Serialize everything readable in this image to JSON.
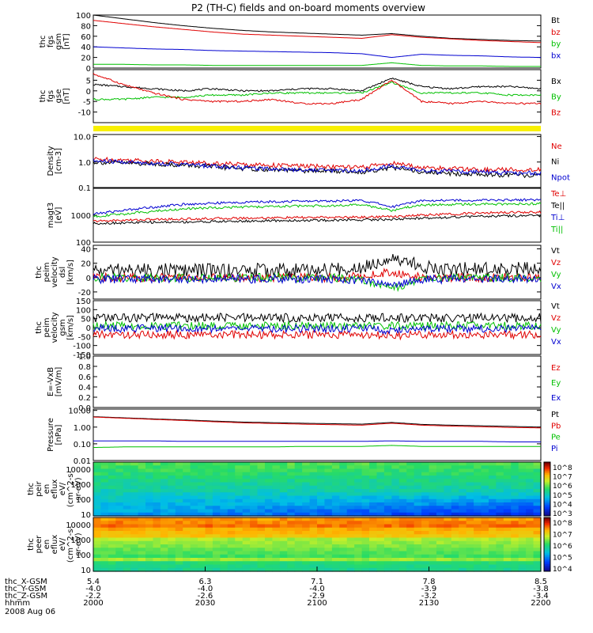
{
  "chart_data": {
    "type": "line",
    "title": "P2 (TH-C) fields and on-board moments overview",
    "panels": [
      {
        "id": "fgs",
        "ylabel": [
          "thc",
          "fgs",
          "gsm",
          "[nT]"
        ],
        "yscale": "linear",
        "ylim": [
          0,
          100
        ],
        "yticks": [
          "100",
          "80",
          "60",
          "40",
          "20",
          "0"
        ],
        "legend": [
          {
            "name": "Bt",
            "color": "#000000"
          },
          {
            "name": "bz",
            "color": "#e00000"
          },
          {
            "name": "by",
            "color": "#00c000"
          },
          {
            "name": "bx",
            "color": "#0000d0"
          }
        ],
        "series": [
          {
            "name": "Bt",
            "values": [
              100,
              93,
              86,
              80,
              75,
              71,
              68,
              66,
              64,
              62,
              65,
              60,
              56,
              54,
              52,
              51
            ]
          },
          {
            "name": "bz",
            "values": [
              90,
              84,
              78,
              73,
              68,
              64,
              62,
              60,
              58,
              56,
              63,
              58,
              55,
              52,
              50,
              48
            ]
          },
          {
            "name": "by",
            "values": [
              7,
              7,
              6,
              6,
              5,
              5,
              5,
              5,
              5,
              5,
              10,
              5,
              4,
              4,
              3,
              3
            ]
          },
          {
            "name": "bx",
            "values": [
              40,
              38,
              36,
              35,
              33,
              32,
              31,
              30,
              29,
              27,
              20,
              26,
              24,
              23,
              21,
              20
            ]
          }
        ]
      },
      {
        "id": "fgs-dsl",
        "ylabel": [
          "thc",
          "fgs",
          "gse",
          "[nT]"
        ],
        "yscale": "linear",
        "ylim": [
          -15,
          10
        ],
        "yticks": [
          "5",
          "0",
          "-5",
          "-10"
        ],
        "legend": [
          {
            "name": "Bx",
            "color": "#000000"
          },
          {
            "name": "By",
            "color": "#00c000"
          },
          {
            "name": "Bz",
            "color": "#e00000"
          }
        ],
        "series": [
          {
            "name": "Bx",
            "values": [
              3,
              2,
              1,
              0,
              1,
              0,
              0,
              1,
              1,
              0,
              6,
              2,
              1,
              2,
              2,
              1
            ]
          },
          {
            "name": "By",
            "values": [
              -4,
              -4,
              -3,
              -3,
              -2,
              -2,
              -1,
              -1,
              -1,
              -1,
              4,
              -1,
              -1,
              -1,
              -2,
              -2
            ]
          },
          {
            "name": "Bz",
            "values": [
              8,
              3,
              -1,
              -4,
              -5,
              -5,
              -4,
              -6,
              -6,
              -4,
              5,
              -5,
              -6,
              -5,
              -6,
              -6
            ]
          }
        ]
      },
      {
        "id": "density",
        "ylabel": [
          "Density",
          "[cm-3]"
        ],
        "yscale": "log",
        "ylim": [
          0.1,
          12
        ],
        "yticks": [
          "10.0",
          "1.0",
          "0.1"
        ],
        "legend": [
          {
            "name": "Ne",
            "color": "#e00000"
          },
          {
            "name": "Ni",
            "color": "#000000"
          },
          {
            "name": "Npot",
            "color": "#0000d0"
          }
        ],
        "series": [
          {
            "name": "Ne",
            "values": [
              1.3,
              1.2,
              1.1,
              1.0,
              0.9,
              0.8,
              0.75,
              0.7,
              0.65,
              0.6,
              0.9,
              0.6,
              0.55,
              0.5,
              0.5,
              0.5
            ]
          },
          {
            "name": "Ni",
            "values": [
              1.0,
              0.9,
              0.85,
              0.75,
              0.65,
              0.55,
              0.5,
              0.45,
              0.45,
              0.4,
              0.6,
              0.4,
              0.35,
              0.33,
              0.3,
              0.3
            ]
          },
          {
            "name": "Npot",
            "values": [
              1.1,
              1.0,
              0.9,
              0.8,
              0.7,
              0.6,
              0.55,
              0.5,
              0.48,
              0.45,
              0.7,
              0.45,
              0.42,
              0.4,
              0.38,
              0.36
            ]
          }
        ]
      },
      {
        "id": "temperature",
        "ylabel": [
          "magt3",
          "[eV]"
        ],
        "yscale": "log",
        "ylim": [
          100,
          10000
        ],
        "yticks": [
          "1000",
          "100"
        ],
        "legend": [
          {
            "name": "Te⊥",
            "color": "#e00000"
          },
          {
            "name": "Te||",
            "color": "#000000"
          },
          {
            "name": "Ti⊥",
            "color": "#0000d0"
          },
          {
            "name": "Ti||",
            "color": "#00c000"
          }
        ],
        "series": [
          {
            "name": "Te⊥",
            "values": [
              600,
              650,
              700,
              720,
              750,
              780,
              800,
              820,
              830,
              850,
              900,
              1000,
              1100,
              1200,
              1300,
              1300
            ]
          },
          {
            "name": "Te||",
            "values": [
              500,
              520,
              550,
              560,
              580,
              600,
              620,
              640,
              650,
              680,
              700,
              780,
              850,
              900,
              950,
              950
            ]
          },
          {
            "name": "Ti⊥",
            "values": [
              1100,
              1500,
              2000,
              2500,
              2800,
              3000,
              3200,
              3300,
              3400,
              3500,
              2000,
              3500,
              3600,
              3600,
              3700,
              3800
            ]
          },
          {
            "name": "Ti||",
            "values": [
              900,
              1100,
              1400,
              1700,
              1900,
              2000,
              2100,
              2200,
              2300,
              2400,
              1500,
              2400,
              2500,
              2600,
              2600,
              2700
            ]
          }
        ]
      },
      {
        "id": "velocity-dsl",
        "ylabel": [
          "thc",
          "peim",
          "velocity",
          "dsl",
          "[km/s]"
        ],
        "yscale": "linear",
        "ylim": [
          -30,
          45
        ],
        "yticks": [
          "40",
          "20",
          "0",
          "-20"
        ],
        "legend": [
          {
            "name": "Vt",
            "color": "#000000"
          },
          {
            "name": "Vz",
            "color": "#e00000"
          },
          {
            "name": "Vy",
            "color": "#00c000"
          },
          {
            "name": "Vx",
            "color": "#0000d0"
          }
        ],
        "series": [
          {
            "name": "Vt",
            "values": [
              10,
              10,
              10,
              10,
              10,
              10,
              10,
              10,
              10,
              15,
              30,
              15,
              12,
              12,
              12,
              12
            ]
          },
          {
            "name": "Vz",
            "values": [
              0,
              0,
              0,
              0,
              0,
              0,
              0,
              0,
              0,
              2,
              8,
              0,
              0,
              0,
              0,
              0
            ]
          },
          {
            "name": "Vy",
            "values": [
              0,
              0,
              0,
              0,
              0,
              0,
              0,
              0,
              0,
              -3,
              -15,
              -2,
              0,
              0,
              0,
              0
            ]
          },
          {
            "name": "Vx",
            "values": [
              -2,
              -2,
              -2,
              -2,
              -2,
              -2,
              -2,
              -2,
              -2,
              -4,
              -10,
              -3,
              -2,
              -2,
              -2,
              -2
            ]
          }
        ]
      },
      {
        "id": "velocity-gsm",
        "ylabel": [
          "thc",
          "peim",
          "velocity",
          "gsm",
          "[km/s]"
        ],
        "yscale": "linear",
        "ylim": [
          -150,
          150
        ],
        "yticks": [
          "150",
          "100",
          "50",
          "0",
          "-50",
          "-100",
          "-150"
        ],
        "legend": [
          {
            "name": "Vt",
            "color": "#000000"
          },
          {
            "name": "Vz",
            "color": "#e00000"
          },
          {
            "name": "Vy",
            "color": "#00c000"
          },
          {
            "name": "Vx",
            "color": "#0000d0"
          }
        ],
        "series": [
          {
            "name": "Vt",
            "values": [
              55,
              55,
              55,
              55,
              55,
              55,
              55,
              55,
              55,
              55,
              55,
              55,
              55,
              55,
              55,
              55
            ]
          },
          {
            "name": "Vz",
            "values": [
              -40,
              -40,
              -40,
              -40,
              -40,
              -40,
              -40,
              -40,
              -40,
              -40,
              -45,
              -40,
              -40,
              -40,
              -40,
              -40
            ]
          },
          {
            "name": "Vy",
            "values": [
              10,
              10,
              10,
              10,
              10,
              10,
              10,
              10,
              10,
              10,
              10,
              10,
              10,
              10,
              10,
              10
            ]
          },
          {
            "name": "Vx",
            "values": [
              -5,
              -5,
              -5,
              -5,
              -5,
              -5,
              -5,
              -5,
              -5,
              -5,
              -20,
              -5,
              -5,
              -5,
              -5,
              -5
            ]
          }
        ]
      },
      {
        "id": "efield",
        "ylabel": [
          "E=-VxB",
          "[mV/m]"
        ],
        "yscale": "linear",
        "ylim": [
          0,
          1
        ],
        "yticks": [
          "1.0",
          "0.8",
          "0.6",
          "0.4",
          "0.2",
          "0.0"
        ],
        "legend": [
          {
            "name": "Ez",
            "color": "#e00000"
          },
          {
            "name": "Ey",
            "color": "#00c000"
          },
          {
            "name": "Ex",
            "color": "#0000d0"
          }
        ],
        "series": []
      },
      {
        "id": "pressure",
        "ylabel": [
          "Pressure",
          "[nPa]"
        ],
        "yscale": "log",
        "ylim": [
          0.01,
          12
        ],
        "yticks": [
          "10.00",
          "1.00",
          "0.10",
          "0.01"
        ],
        "legend": [
          {
            "name": "Pt",
            "color": "#000000"
          },
          {
            "name": "Pb",
            "color": "#e00000"
          },
          {
            "name": "Pe",
            "color": "#00c000"
          },
          {
            "name": "Pi",
            "color": "#0000d0"
          }
        ],
        "series": [
          {
            "name": "Pt",
            "values": [
              4.2,
              3.6,
              3.1,
              2.7,
              2.3,
              2.0,
              1.85,
              1.7,
              1.6,
              1.5,
              1.9,
              1.45,
              1.3,
              1.2,
              1.1,
              1.0
            ]
          },
          {
            "name": "Pb",
            "values": [
              4.0,
              3.4,
              2.9,
              2.5,
              2.1,
              1.8,
              1.65,
              1.5,
              1.4,
              1.3,
              1.7,
              1.3,
              1.15,
              1.05,
              0.95,
              0.9
            ]
          },
          {
            "name": "Pe",
            "values": [
              0.06,
              0.065,
              0.065,
              0.065,
              0.065,
              0.065,
              0.065,
              0.07,
              0.07,
              0.07,
              0.08,
              0.07,
              0.07,
              0.07,
              0.07,
              0.07
            ]
          },
          {
            "name": "Pi",
            "values": [
              0.15,
              0.15,
              0.15,
              0.14,
              0.14,
              0.14,
              0.14,
              0.14,
              0.14,
              0.14,
              0.15,
              0.14,
              0.14,
              0.14,
              0.13,
              0.13
            ]
          }
        ]
      },
      {
        "id": "peir-spectrogram",
        "type": "heatmap",
        "ylabel": [
          "thc",
          "peir",
          "en",
          "eflux",
          "eV/",
          "(cm^2-s-",
          "sr-eV)"
        ],
        "yscale": "log",
        "ylim": [
          8,
          30000
        ],
        "yticks": [
          "10000",
          "1000",
          "100",
          "10"
        ],
        "colorbar_ticks": [
          "10^8",
          "10^7",
          "10^6",
          "10^5",
          "10^4",
          "10^3"
        ]
      },
      {
        "id": "peer-spectrogram",
        "type": "heatmap",
        "ylabel": [
          "thc",
          "peer",
          "en",
          "eflux",
          "eV/",
          "(cm^2-s-",
          "sr-eV)"
        ],
        "yscale": "log",
        "ylim": [
          8,
          30000
        ],
        "yticks": [
          "10000",
          "1000",
          "100",
          "10"
        ],
        "colorbar_ticks": [
          "10^8",
          "10^7",
          "10^6",
          "10^5",
          "10^4"
        ]
      }
    ],
    "xaxis": {
      "rows": [
        {
          "label": "thc_X-GSM",
          "values": [
            "5.4",
            "6.3",
            "7.1",
            "7.8",
            "8.5"
          ]
        },
        {
          "label": "thc_Y-GSM",
          "values": [
            "-4.0",
            "-4.0",
            "-4.0",
            "-3.9",
            "-3.8"
          ]
        },
        {
          "label": "thc_Z-GSM",
          "values": [
            "-2.2",
            "-2.6",
            "-2.9",
            "-3.2",
            "-3.4"
          ]
        },
        {
          "label": "hhmm",
          "values": [
            "2000",
            "2030",
            "2100",
            "2130",
            "2200"
          ]
        }
      ],
      "date": "2008 Aug 06"
    }
  }
}
